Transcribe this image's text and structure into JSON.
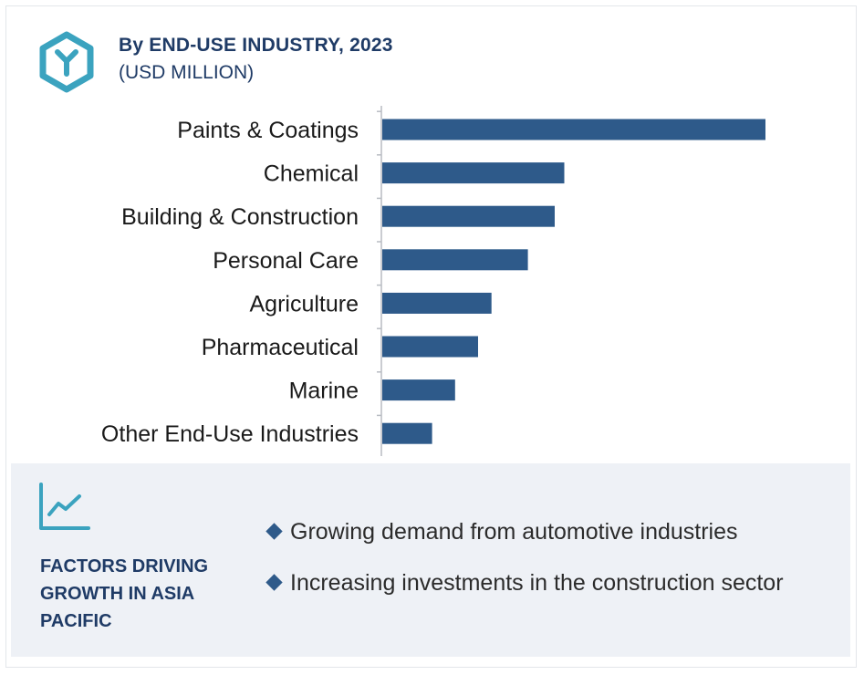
{
  "header": {
    "title": "By END-USE INDUSTRY, 2023",
    "subtitle": "(USD MILLION)"
  },
  "colors": {
    "bar": "#2e5a8a",
    "accent": "#3ba3bf",
    "title": "#1f3b66",
    "panel": "#eef1f6"
  },
  "icons": {
    "logo": "hexagon-y-logo-icon",
    "trend": "line-chart-trend-icon",
    "bullet": "diamond-bullet-icon"
  },
  "chart_data": {
    "type": "bar",
    "orientation": "horizontal",
    "categories": [
      "Paints & Coatings",
      "Chemical",
      "Building & Construction",
      "Personal Care",
      "Agriculture",
      "Pharmaceutical",
      "Marine",
      "Other End-Use Industries"
    ],
    "values": [
      100,
      47.5,
      45,
      38,
      28.5,
      25,
      19,
      13
    ],
    "xlim": [
      0,
      100
    ],
    "grid": false,
    "legend": "none",
    "value_axis_shown": false
  },
  "factors": {
    "title": "FACTORS DRIVING GROWTH IN ASIA PACIFIC",
    "items": [
      "Growing demand from automotive industries",
      "Increasing investments in the construction sector"
    ]
  }
}
